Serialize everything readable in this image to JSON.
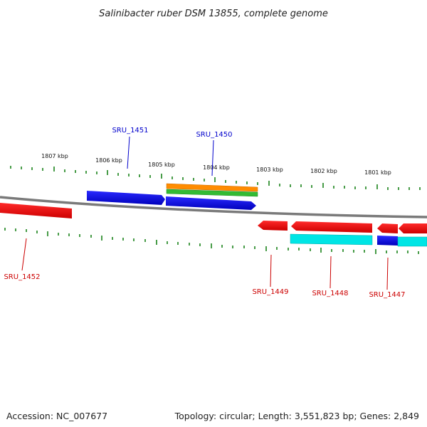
{
  "title": "Salinibacter ruber DSM 13855, complete genome",
  "footer": {
    "accession": "Accession: NC_007677",
    "summary": "Topology: circular; Length: 3,551,823 bp; Genes: 2,849"
  },
  "colors": {
    "backbone": "#888888",
    "tick": "#0a7a0a",
    "forward_gene": "#0000ee",
    "reverse_gene": "#ee0000",
    "cyan_feature": "#00e5e5",
    "orange_feature": "#ff8c00",
    "green_feature": "#33bb33",
    "forward_label": "#0000cc",
    "reverse_label": "#cc0000"
  },
  "scale_labels": [
    "1807 kbp",
    "1806 kbp",
    "1805 kbp",
    "1804 kbp",
    "1803 kbp",
    "1802 kbp",
    "1801 kbp"
  ],
  "gene_labels": {
    "forward": [
      "SRU_1451",
      "SRU_1450"
    ],
    "reverse": [
      "SRU_1452",
      "SRU_1449",
      "SRU_1448",
      "SRU_1447"
    ]
  }
}
